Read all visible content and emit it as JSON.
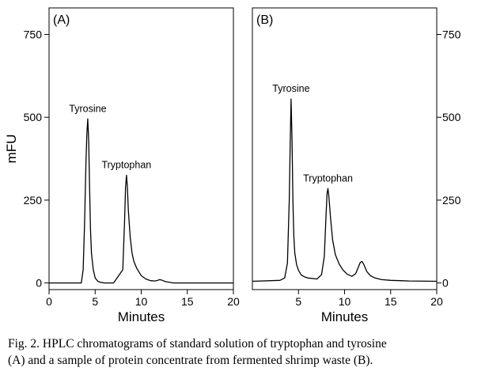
{
  "chart_data": [
    {
      "type": "line",
      "panel_label": "(A)",
      "xlabel": "Minutes",
      "ylabel": "mFU",
      "xlim": [
        0,
        20
      ],
      "ylim": [
        -20,
        830
      ],
      "xticks": [
        "0",
        "5",
        "10",
        "15",
        "20"
      ],
      "yticks": [
        "0",
        "250",
        "500",
        "750"
      ],
      "y_axis_side": "left",
      "grid": false,
      "series": [
        {
          "x": [
            0,
            3.5,
            3.7,
            3.85,
            4.0,
            4.1,
            4.2,
            4.3,
            4.4,
            4.5,
            4.6,
            4.8,
            5.0,
            5.3,
            5.6,
            6,
            7,
            8.0,
            8.2,
            8.3,
            8.4,
            8.5,
            8.6,
            8.8,
            9.0,
            9.2,
            9.5,
            10.0,
            10.5,
            11.0,
            11.5,
            11.8,
            12.0,
            12.3,
            12.6,
            13.5,
            20
          ],
          "y": [
            0,
            0,
            40,
            180,
            360,
            450,
            495,
            430,
            280,
            160,
            90,
            40,
            15,
            5,
            2,
            0,
            0,
            40,
            190,
            290,
            325,
            290,
            220,
            140,
            90,
            65,
            45,
            22,
            12,
            7,
            6,
            8,
            10,
            8,
            4,
            0,
            0
          ]
        }
      ],
      "annotations": [
        {
          "text": "Tyrosine",
          "x": 4.2,
          "y": 495
        },
        {
          "text": "Tryptophan",
          "x": 8.4,
          "y": 325
        }
      ]
    },
    {
      "type": "line",
      "panel_label": "(B)",
      "xlabel": "Minutes",
      "ylabel": "",
      "xlim": [
        0,
        20
      ],
      "ylim": [
        -20,
        830
      ],
      "xticks": [
        "5",
        "10",
        "15",
        "20"
      ],
      "yticks": [
        "0",
        "250",
        "500",
        "750"
      ],
      "y_axis_side": "right",
      "grid": false,
      "series": [
        {
          "x": [
            0,
            3.0,
            3.5,
            3.8,
            4.0,
            4.1,
            4.2,
            4.3,
            4.4,
            4.5,
            4.6,
            4.8,
            5.0,
            5.3,
            5.7,
            6.0,
            7.0,
            7.5,
            7.8,
            8.0,
            8.1,
            8.2,
            8.3,
            8.5,
            8.7,
            9.0,
            9.4,
            9.8,
            10.3,
            10.8,
            11.2,
            11.5,
            11.7,
            11.9,
            12.1,
            12.4,
            12.8,
            13.3,
            14.0,
            15.0,
            16.0,
            17.0,
            20.0
          ],
          "y": [
            5,
            8,
            15,
            60,
            250,
            420,
            555,
            430,
            240,
            140,
            90,
            55,
            38,
            24,
            18,
            15,
            12,
            25,
            80,
            210,
            270,
            285,
            260,
            190,
            130,
            85,
            58,
            40,
            26,
            20,
            28,
            48,
            62,
            65,
            55,
            35,
            22,
            15,
            10,
            8,
            7,
            6,
            5
          ]
        }
      ],
      "annotations": [
        {
          "text": "Tyrosine",
          "x": 4.2,
          "y": 555
        },
        {
          "text": "Tryptophan",
          "x": 8.2,
          "y": 285
        }
      ]
    }
  ],
  "caption": {
    "line1": "Fig. 2.  HPLC chromatograms of standard solution of tryptophan and tyrosine",
    "line2": "(A) and a sample of protein concentrate from fermented shrimp waste (B)."
  },
  "colors": {
    "line": "#000000",
    "axis": "#000000",
    "background": "#ffffff"
  }
}
